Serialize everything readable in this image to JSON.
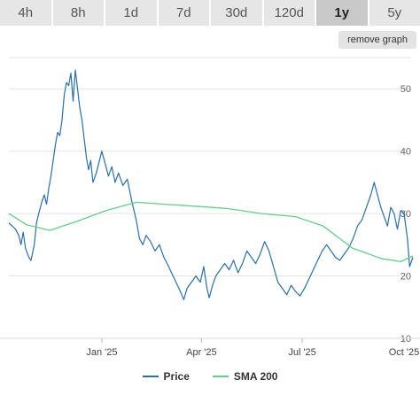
{
  "tabs": [
    {
      "label": "4h",
      "active": false
    },
    {
      "label": "8h",
      "active": false
    },
    {
      "label": "1d",
      "active": false
    },
    {
      "label": "7d",
      "active": false
    },
    {
      "label": "30d",
      "active": false
    },
    {
      "label": "120d",
      "active": false
    },
    {
      "label": "1y",
      "active": true
    },
    {
      "label": "5y",
      "active": false
    }
  ],
  "remove_graph_label": "remove graph",
  "legend": [
    {
      "label": "Price",
      "color": "#2a6fa8"
    },
    {
      "label": "SMA 200",
      "color": "#5fd18a"
    }
  ],
  "chart_data": {
    "type": "line",
    "x_start": "2024-10-09",
    "x_end": "2025-10-09",
    "x_ticks": [
      {
        "label": "Jan '25",
        "date": "2025-01-01"
      },
      {
        "label": "Apr '25",
        "date": "2025-04-01"
      },
      {
        "label": "Jul '25",
        "date": "2025-07-01"
      },
      {
        "label": "Oct '25",
        "date": "2025-10-01"
      }
    ],
    "ylim": [
      10,
      55
    ],
    "y_ticks": [
      10,
      20,
      30,
      40,
      50
    ],
    "grid": true,
    "legend_position": "bottom",
    "series": [
      {
        "name": "Price",
        "color": "#2a6fa8",
        "points": [
          [
            "2024-10-09",
            28.5
          ],
          [
            "2024-10-12",
            28.0
          ],
          [
            "2024-10-15",
            27.5
          ],
          [
            "2024-10-18",
            26.5
          ],
          [
            "2024-10-20",
            25.0
          ],
          [
            "2024-10-22",
            27.0
          ],
          [
            "2024-10-24",
            24.5
          ],
          [
            "2024-10-27",
            23.0
          ],
          [
            "2024-10-29",
            22.5
          ],
          [
            "2024-11-01",
            25.0
          ],
          [
            "2024-11-03",
            28.5
          ],
          [
            "2024-11-05",
            30.0
          ],
          [
            "2024-11-08",
            32.0
          ],
          [
            "2024-11-10",
            33.0
          ],
          [
            "2024-11-12",
            31.5
          ],
          [
            "2024-11-14",
            34.0
          ],
          [
            "2024-11-16",
            36.0
          ],
          [
            "2024-11-18",
            38.5
          ],
          [
            "2024-11-20",
            41.0
          ],
          [
            "2024-11-22",
            43.0
          ],
          [
            "2024-11-24",
            42.5
          ],
          [
            "2024-11-26",
            45.0
          ],
          [
            "2024-11-28",
            49.0
          ],
          [
            "2024-11-30",
            51.0
          ],
          [
            "2024-12-02",
            50.5
          ],
          [
            "2024-12-04",
            52.5
          ],
          [
            "2024-12-06",
            48.0
          ],
          [
            "2024-12-08",
            53.0
          ],
          [
            "2024-12-10",
            50.0
          ],
          [
            "2024-12-12",
            47.0
          ],
          [
            "2024-12-14",
            45.0
          ],
          [
            "2024-12-16",
            42.0
          ],
          [
            "2024-12-18",
            39.0
          ],
          [
            "2024-12-20",
            37.0
          ],
          [
            "2024-12-22",
            38.5
          ],
          [
            "2024-12-24",
            35.0
          ],
          [
            "2024-12-27",
            36.5
          ],
          [
            "2025-01-01",
            40.0
          ],
          [
            "2025-01-04",
            38.0
          ],
          [
            "2025-01-07",
            36.0
          ],
          [
            "2025-01-10",
            37.5
          ],
          [
            "2025-01-13",
            35.0
          ],
          [
            "2025-01-16",
            36.5
          ],
          [
            "2025-01-20",
            34.5
          ],
          [
            "2025-01-24",
            35.5
          ],
          [
            "2025-01-28",
            32.0
          ],
          [
            "2025-02-01",
            29.0
          ],
          [
            "2025-02-04",
            26.0
          ],
          [
            "2025-02-07",
            25.0
          ],
          [
            "2025-02-10",
            26.5
          ],
          [
            "2025-02-14",
            25.5
          ],
          [
            "2025-02-18",
            24.0
          ],
          [
            "2025-02-22",
            25.0
          ],
          [
            "2025-02-26",
            23.0
          ],
          [
            "2025-03-01",
            22.0
          ],
          [
            "2025-03-05",
            20.5
          ],
          [
            "2025-03-09",
            19.0
          ],
          [
            "2025-03-13",
            17.5
          ],
          [
            "2025-03-16",
            16.2
          ],
          [
            "2025-03-19",
            18.0
          ],
          [
            "2025-03-23",
            19.0
          ],
          [
            "2025-03-27",
            20.0
          ],
          [
            "2025-03-31",
            19.0
          ],
          [
            "2025-04-03",
            21.5
          ],
          [
            "2025-04-06",
            18.0
          ],
          [
            "2025-04-08",
            16.5
          ],
          [
            "2025-04-11",
            18.5
          ],
          [
            "2025-04-14",
            20.0
          ],
          [
            "2025-04-18",
            21.0
          ],
          [
            "2025-04-22",
            22.0
          ],
          [
            "2025-04-26",
            21.0
          ],
          [
            "2025-04-30",
            22.5
          ],
          [
            "2025-05-04",
            20.5
          ],
          [
            "2025-05-08",
            22.0
          ],
          [
            "2025-05-12",
            24.0
          ],
          [
            "2025-05-16",
            23.0
          ],
          [
            "2025-05-20",
            22.0
          ],
          [
            "2025-05-24",
            23.5
          ],
          [
            "2025-05-28",
            25.5
          ],
          [
            "2025-06-01",
            24.0
          ],
          [
            "2025-06-05",
            21.5
          ],
          [
            "2025-06-09",
            19.0
          ],
          [
            "2025-06-13",
            18.0
          ],
          [
            "2025-06-17",
            17.0
          ],
          [
            "2025-06-21",
            18.5
          ],
          [
            "2025-06-25",
            17.5
          ],
          [
            "2025-06-29",
            16.8
          ],
          [
            "2025-07-03",
            18.0
          ],
          [
            "2025-07-07",
            19.5
          ],
          [
            "2025-07-11",
            21.0
          ],
          [
            "2025-07-15",
            22.5
          ],
          [
            "2025-07-19",
            24.0
          ],
          [
            "2025-07-23",
            25.0
          ],
          [
            "2025-07-27",
            24.0
          ],
          [
            "2025-07-31",
            23.0
          ],
          [
            "2025-08-04",
            22.5
          ],
          [
            "2025-08-08",
            23.5
          ],
          [
            "2025-08-12",
            24.5
          ],
          [
            "2025-08-16",
            26.0
          ],
          [
            "2025-08-20",
            28.0
          ],
          [
            "2025-08-24",
            29.0
          ],
          [
            "2025-08-28",
            31.0
          ],
          [
            "2025-09-01",
            33.0
          ],
          [
            "2025-09-04",
            35.0
          ],
          [
            "2025-09-07",
            33.0
          ],
          [
            "2025-09-10",
            31.0
          ],
          [
            "2025-09-13",
            29.5
          ],
          [
            "2025-09-16",
            28.0
          ],
          [
            "2025-09-19",
            31.0
          ],
          [
            "2025-09-22",
            30.0
          ],
          [
            "2025-09-25",
            27.5
          ],
          [
            "2025-09-28",
            30.5
          ],
          [
            "2025-10-01",
            30.0
          ],
          [
            "2025-10-04",
            26.0
          ],
          [
            "2025-10-06",
            21.5
          ],
          [
            "2025-10-07",
            22.0
          ],
          [
            "2025-10-09",
            23.0
          ]
        ]
      },
      {
        "name": "SMA 200",
        "color": "#5fd18a",
        "points": [
          [
            "2024-10-09",
            30.0
          ],
          [
            "2024-10-25",
            28.2
          ],
          [
            "2024-11-15",
            27.3
          ],
          [
            "2024-12-10",
            28.8
          ],
          [
            "2025-01-05",
            30.5
          ],
          [
            "2025-02-01",
            31.8
          ],
          [
            "2025-02-25",
            31.5
          ],
          [
            "2025-03-25",
            31.2
          ],
          [
            "2025-04-25",
            30.8
          ],
          [
            "2025-05-25",
            30.0
          ],
          [
            "2025-06-25",
            29.5
          ],
          [
            "2025-07-20",
            28.0
          ],
          [
            "2025-08-15",
            24.5
          ],
          [
            "2025-09-10",
            22.8
          ],
          [
            "2025-09-28",
            22.3
          ],
          [
            "2025-10-09",
            23.2
          ]
        ]
      }
    ]
  }
}
